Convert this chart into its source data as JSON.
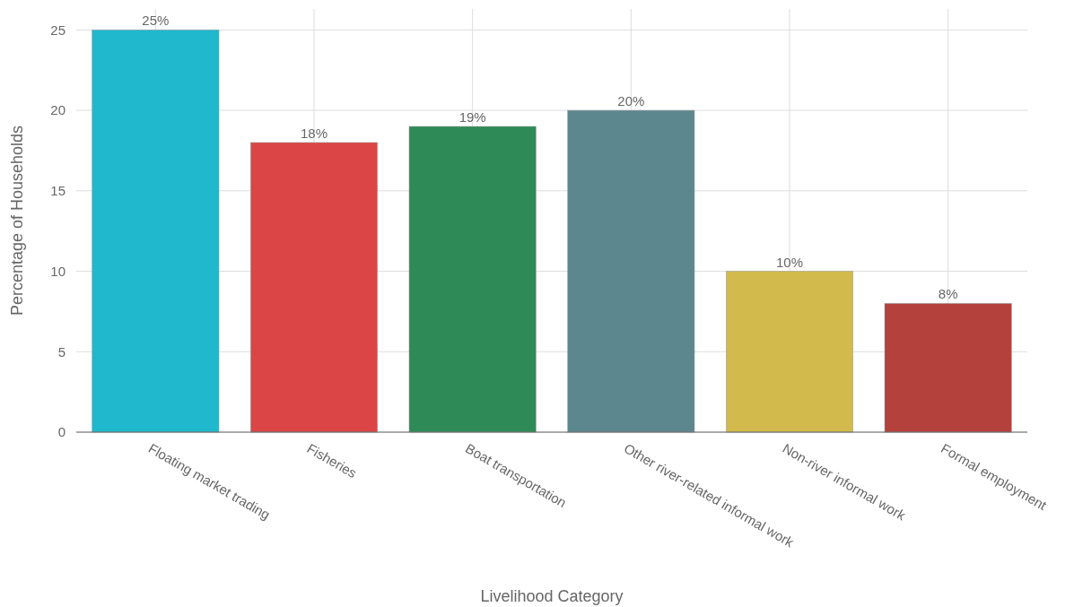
{
  "chart_data": {
    "type": "bar",
    "xlabel": "Livelihood Category",
    "ylabel": "Percentage of Households",
    "categories": [
      "Floating market trading",
      "Fisheries",
      "Boat transportation",
      "Other river-related informal work",
      "Non-river informal work",
      "Formal employment"
    ],
    "values": [
      25,
      18,
      19,
      20,
      10,
      8
    ],
    "colors": [
      "#1fb8cd",
      "#db4545",
      "#2e8b57",
      "#5d878f",
      "#d2ba4c",
      "#b4413c"
    ],
    "value_labels": [
      "25%",
      "18%",
      "19%",
      "20%",
      "10%",
      "8%"
    ],
    "ylim": [
      0,
      26.3
    ],
    "yticks": [
      0,
      5,
      10,
      15,
      20,
      25
    ],
    "grid": true
  }
}
